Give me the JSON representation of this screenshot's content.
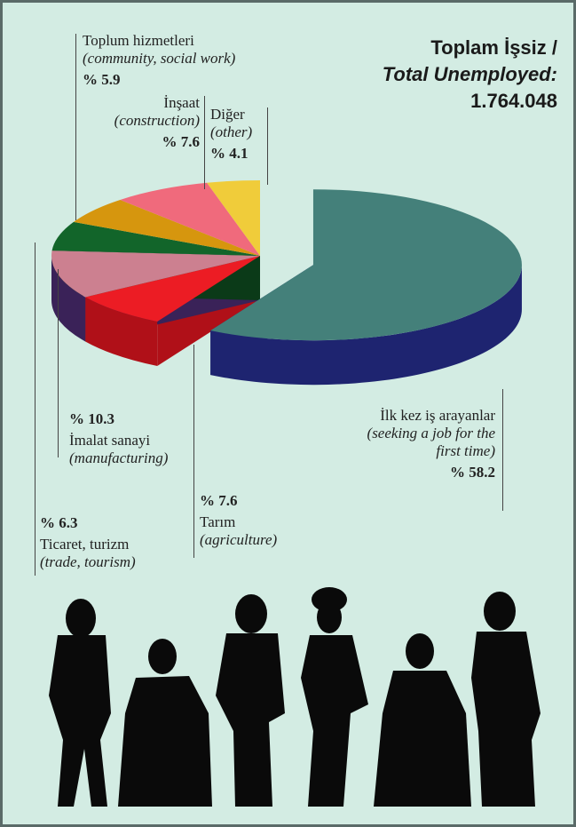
{
  "chart_data": {
    "type": "pie3d",
    "title": "Toplam İşsiz /",
    "subtitle": "Total Unemployed:",
    "total": {
      "value": 1764048,
      "label": "1.764.048"
    },
    "categories": [
      "İlk kez iş arayanlar",
      "Tarım",
      "İmalat sanayi",
      "Ticaret, turizm",
      "Toplum hizmetleri",
      "İnşaat",
      "Diğer"
    ],
    "category_translations": [
      "(seeking a job for the first time)",
      "(agriculture)",
      "(manufacturing)",
      "(trade, tourism)",
      "(community, social work)",
      "(construction)",
      "(other)"
    ],
    "values": [
      58.2,
      7.6,
      10.3,
      6.3,
      5.9,
      7.6,
      4.1
    ],
    "value_labels": [
      "% 58.2",
      "% 7.6",
      "% 10.3",
      "% 6.3",
      "% 5.9",
      "% 7.6",
      "% 4.1"
    ],
    "colors": [
      "#44807a",
      "#ec1c24",
      "#cc8090",
      "#12652a",
      "#d6960e",
      "#f06a7c",
      "#f0cc3a"
    ],
    "side_colors": [
      "#1e2470",
      "#b01018",
      "#3a2258",
      "#0b3a18",
      "#8a5c08",
      "#a83848",
      "#a88a20"
    ]
  }
}
